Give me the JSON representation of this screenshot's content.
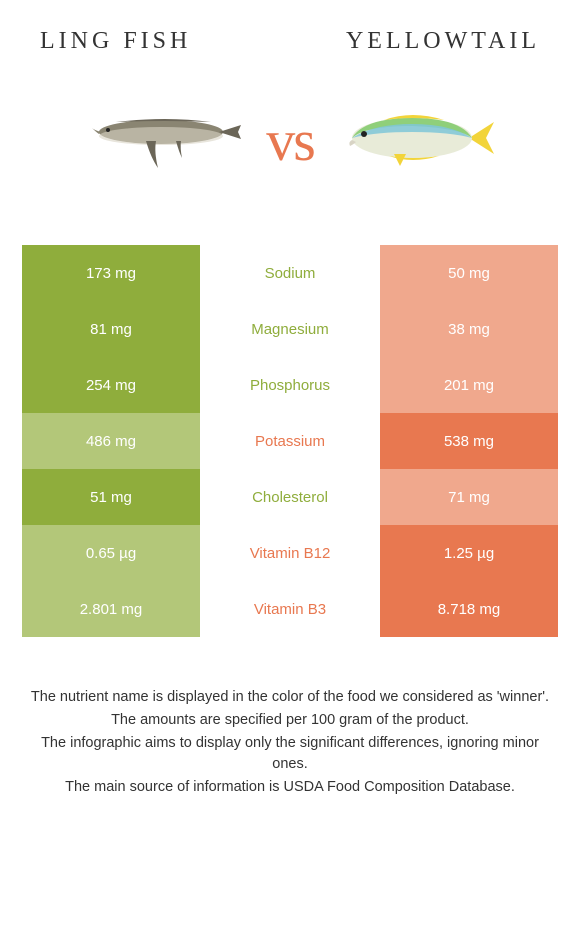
{
  "header": {
    "left_title": "LING FISH",
    "right_title": "YELLOWTAIL",
    "vs_text": "vs"
  },
  "colors": {
    "left_winner_bg": "#8fad3c",
    "left_loser_bg": "#b3c779",
    "right_winner_bg": "#e87850",
    "right_loser_bg": "#f0a88d",
    "left_text_mid": "#8fad3c",
    "right_text_mid": "#e87850",
    "vs_color": "#e87850"
  },
  "nutrients": [
    {
      "name": "Sodium",
      "left": "173 mg",
      "right": "50 mg",
      "winner": "left"
    },
    {
      "name": "Magnesium",
      "left": "81 mg",
      "right": "38 mg",
      "winner": "left"
    },
    {
      "name": "Phosphorus",
      "left": "254 mg",
      "right": "201 mg",
      "winner": "left"
    },
    {
      "name": "Potassium",
      "left": "486 mg",
      "right": "538 mg",
      "winner": "right"
    },
    {
      "name": "Cholesterol",
      "left": "51 mg",
      "right": "71 mg",
      "winner": "left"
    },
    {
      "name": "Vitamin B12",
      "left": "0.65 µg",
      "right": "1.25 µg",
      "winner": "right"
    },
    {
      "name": "Vitamin B3",
      "left": "2.801 mg",
      "right": "8.718 mg",
      "winner": "right"
    }
  ],
  "footnotes": [
    "The nutrient name is displayed in the color of the food we considered as 'winner'.",
    "The amounts are specified per 100 gram of the product.",
    "The infographic aims to display only the significant differences, ignoring minor ones.",
    "The main source of information is USDA Food Composition Database."
  ],
  "fish_left": {
    "name": "ling-fish",
    "body_color": "#8a8572",
    "belly_color": "#d8d4c5"
  },
  "fish_right": {
    "name": "yellowtail",
    "body_top": "#8fcf7a",
    "body_mid": "#7fc7d8",
    "belly": "#e8ebd8",
    "fin_color": "#f2d43a"
  }
}
